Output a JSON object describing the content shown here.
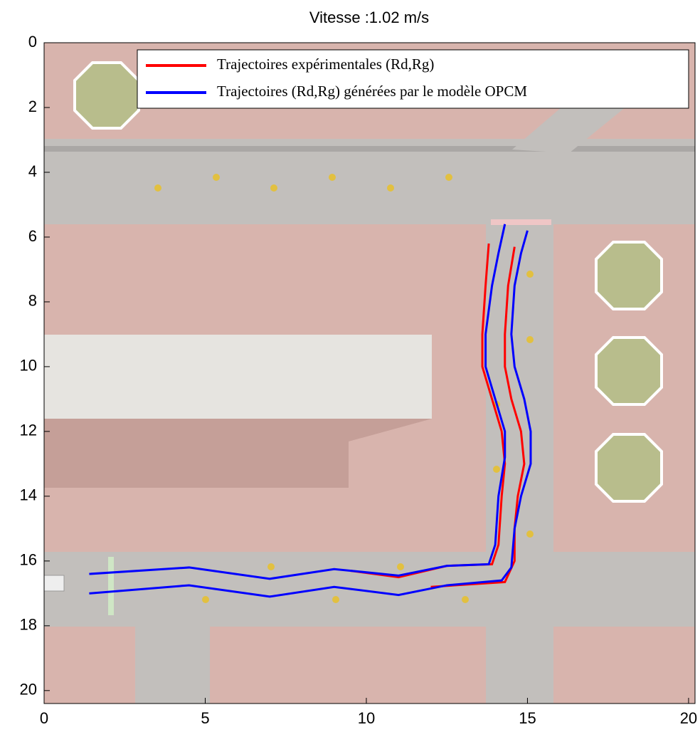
{
  "chart_data": {
    "type": "line",
    "title": "Vitesse :1.02 m/s",
    "xlim": [
      0,
      20.2
    ],
    "ylim": [
      20.4,
      0
    ],
    "y_inverted": true,
    "xticks": [
      0,
      5,
      10,
      15,
      20
    ],
    "yticks": [
      0,
      2,
      4,
      6,
      8,
      10,
      12,
      14,
      16,
      18,
      20
    ],
    "legend": "upper right",
    "series": [
      {
        "name": "Trajectoires expérimentales (Rd,Rg)",
        "color": "#ff0000",
        "trajectories": [
          {
            "x": [
              9.5,
              11,
              12.5,
              13.9,
              14.1,
              14.2,
              14.3,
              14.2,
              13.9,
              13.6,
              13.6,
              13.7,
              13.8
            ],
            "values": [
              16.3,
              16.5,
              16.15,
              16.1,
              15.5,
              14,
              13,
              12,
              11,
              10,
              9,
              7.5,
              6.2
            ]
          },
          {
            "x": [
              12,
              14.3,
              14.6,
              14.6,
              14.7,
              14.9,
              14.8,
              14.5,
              14.3,
              14.3,
              14.4,
              14.6
            ],
            "values": [
              16.8,
              16.65,
              16,
              15,
              14,
              13,
              12,
              11,
              10,
              9,
              7.5,
              6.3
            ]
          }
        ]
      },
      {
        "name": "Trajectoires (Rd,Rg) générées par le modèle OPCM",
        "color": "#0000ff",
        "trajectories": [
          {
            "x": [
              1.4,
              4.5,
              7,
              9,
              11,
              12.5,
              13.8,
              14.0,
              14.1,
              14.3,
              14.3,
              14.0,
              13.7,
              13.7,
              13.9,
              14.1,
              14.3
            ],
            "values": [
              16.4,
              16.2,
              16.55,
              16.25,
              16.45,
              16.15,
              16.1,
              15.5,
              14,
              12.8,
              12,
              11,
              10,
              9,
              7.5,
              6.5,
              5.6
            ]
          },
          {
            "x": [
              1.4,
              4.5,
              7,
              9,
              11,
              12.5,
              14.2,
              14.5,
              14.6,
              14.8,
              15.1,
              15.1,
              14.9,
              14.6,
              14.5,
              14.6,
              14.8,
              15.0
            ],
            "values": [
              17.0,
              16.75,
              17.1,
              16.8,
              17.05,
              16.75,
              16.6,
              16.2,
              15,
              14,
              13,
              12,
              11,
              10,
              9,
              7.5,
              6.5,
              5.8
            ]
          }
        ]
      }
    ]
  }
}
